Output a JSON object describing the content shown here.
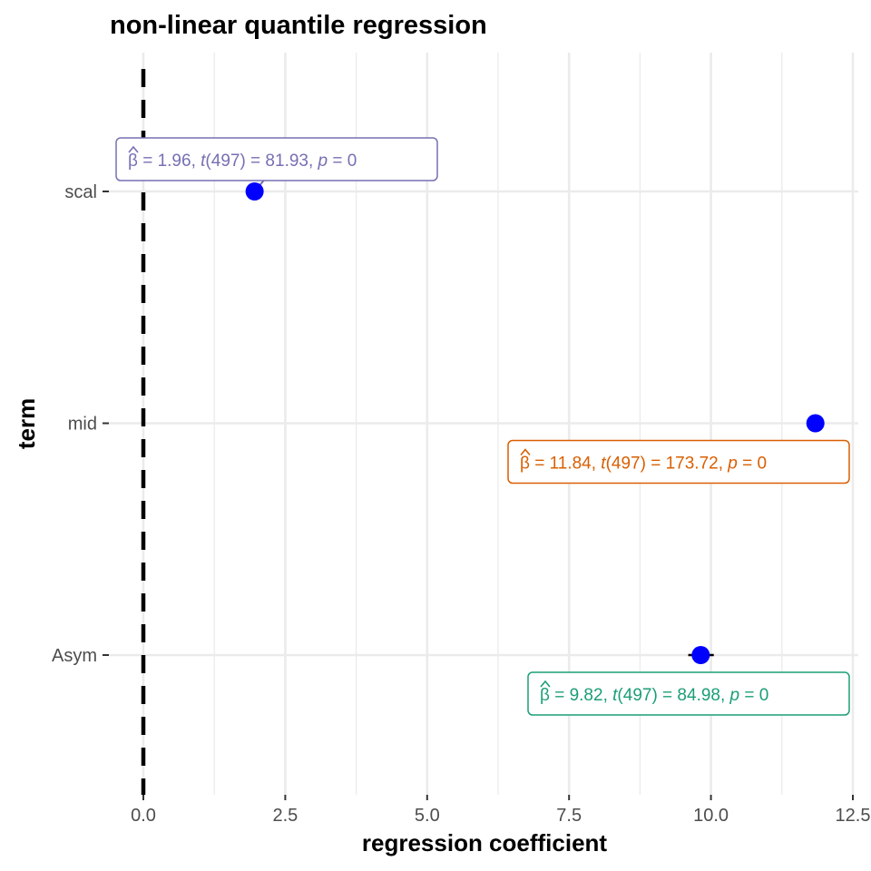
{
  "chart_data": {
    "type": "scatter",
    "title": "non-linear quantile regression",
    "xlabel": "regression coefficient",
    "ylabel": "term",
    "xlim": [
      0,
      12.5
    ],
    "x_ticks": [
      "0.0",
      "2.5",
      "5.0",
      "7.5",
      "10.0",
      "12.5"
    ],
    "x_tick_values": [
      0,
      2.5,
      5,
      7.5,
      10,
      12.5
    ],
    "grid": true,
    "reference_line": {
      "x": 0,
      "style": "dashed",
      "color": "#000000"
    },
    "point_color": "#0000ff",
    "terms": [
      {
        "term": "scal",
        "estimate": 1.96,
        "conf_low": 1.92,
        "conf_high": 2.01,
        "label": {
          "beta": "β",
          "eq1": " = 1.96,  ",
          "t": "t",
          "df": "(497)",
          "eq2": " = 81.93,  ",
          "p": "p",
          "eq3": " = 0"
        },
        "label_color": "#7570b3"
      },
      {
        "term": "mid",
        "estimate": 11.84,
        "conf_low": 11.71,
        "conf_high": 11.97,
        "label": {
          "beta": "β",
          "eq1": " = 11.84,  ",
          "t": "t",
          "df": "(497)",
          "eq2": " = 173.72,  ",
          "p": "p",
          "eq3": " = 0"
        },
        "label_color": "#d95f02"
      },
      {
        "term": "Asym",
        "estimate": 9.82,
        "conf_low": 9.6,
        "conf_high": 10.05,
        "label": {
          "beta": "β",
          "eq1": " = 9.82,  ",
          "t": "t",
          "df": "(497)",
          "eq2": " = 84.98,  ",
          "p": "p",
          "eq3": " = 0"
        },
        "label_color": "#1b9e77"
      }
    ]
  }
}
